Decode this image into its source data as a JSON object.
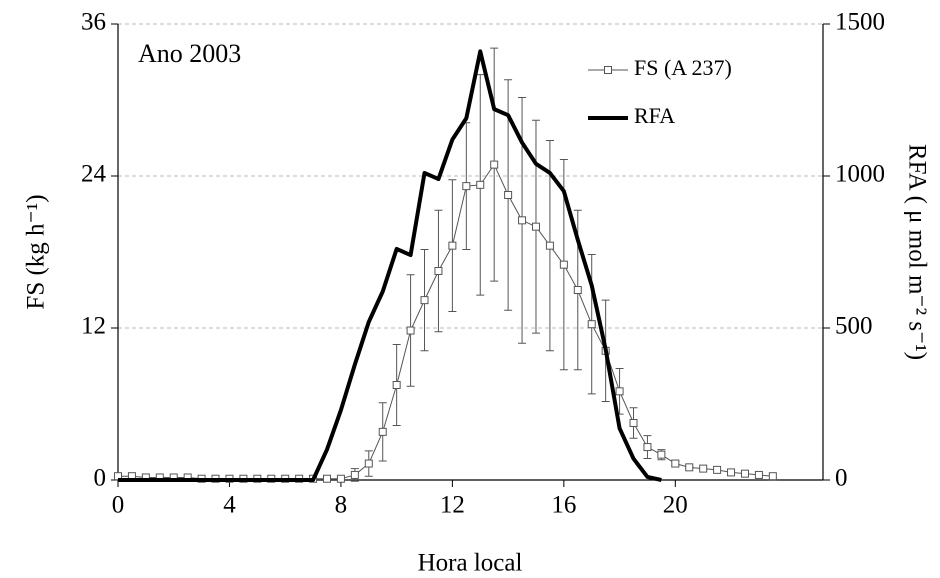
{
  "chart_data": {
    "type": "line",
    "annotation": "Ano 2003",
    "xlabel": "Hora local",
    "ylabel": "FS (kg h⁻¹)",
    "y2label": "RFA ( μ mol m⁻² s⁻¹)",
    "x": [
      0,
      0.5,
      1,
      1.5,
      2,
      2.5,
      3,
      3.5,
      4,
      4.5,
      5,
      5.5,
      6,
      6.5,
      7,
      7.5,
      8,
      8.5,
      9,
      9.5,
      10,
      10.5,
      11,
      11.5,
      12,
      12.5,
      13,
      13.5,
      14,
      14.5,
      15,
      15.5,
      16,
      16.5,
      17,
      17.5,
      18,
      18.5,
      19,
      19.5,
      20,
      20.5,
      21,
      21.5,
      22,
      22.5,
      23,
      23.5
    ],
    "xlim": [
      0,
      25.3
    ],
    "xticks": [
      0,
      4,
      8,
      12,
      16,
      20
    ],
    "ylim": [
      0,
      36
    ],
    "yticks": [
      0,
      12,
      24,
      36
    ],
    "y2lim": [
      0,
      1500
    ],
    "y2ticks": [
      0,
      500,
      1000,
      1500
    ],
    "grid": true,
    "legend": "upper right",
    "series": [
      {
        "name": "FS (A 237)",
        "color": "#555555",
        "values": [
          0.3,
          0.3,
          0.2,
          0.2,
          0.2,
          0.2,
          0.1,
          0.1,
          0.1,
          0.1,
          0.1,
          0.1,
          0.1,
          0.1,
          0.1,
          0.1,
          0.1,
          0.4,
          1.3,
          3.8,
          7.5,
          11.8,
          14.2,
          16.5,
          18.5,
          23.2,
          23.3,
          24.9,
          22.5,
          20.5,
          20,
          18.5,
          17,
          15,
          12.3,
          10.2,
          7,
          4.5,
          2.6,
          2,
          1.3,
          1,
          0.9,
          0.8,
          0.6,
          0.5,
          0.4,
          0.3
        ],
        "errors": [
          0,
          0,
          0,
          0,
          0,
          0,
          0,
          0,
          0,
          0,
          0,
          0,
          0,
          0,
          0,
          0,
          0.1,
          0.5,
          1,
          2.3,
          3.2,
          4.4,
          4,
          4.8,
          5.2,
          5,
          8.7,
          9.2,
          9.1,
          9.7,
          8.4,
          8.3,
          8.3,
          6.3,
          5.5,
          4,
          1.8,
          1.2,
          0.9,
          0.4,
          0.2,
          0.1,
          0,
          0,
          0,
          0,
          0,
          0
        ]
      },
      {
        "name": "RFA",
        "color": "#000000",
        "axis": "y2",
        "values": [
          0,
          0,
          0,
          0,
          0,
          0,
          0,
          0,
          0,
          0,
          0,
          0,
          0,
          0,
          0,
          100,
          230,
          380,
          520,
          620,
          760,
          740,
          1010,
          990,
          1120,
          1190,
          1410,
          1220,
          1200,
          1110,
          1040,
          1010,
          950,
          790,
          640,
          430,
          170,
          70,
          10,
          0,
          null,
          null,
          null,
          null,
          null,
          null,
          null,
          null
        ]
      }
    ]
  }
}
